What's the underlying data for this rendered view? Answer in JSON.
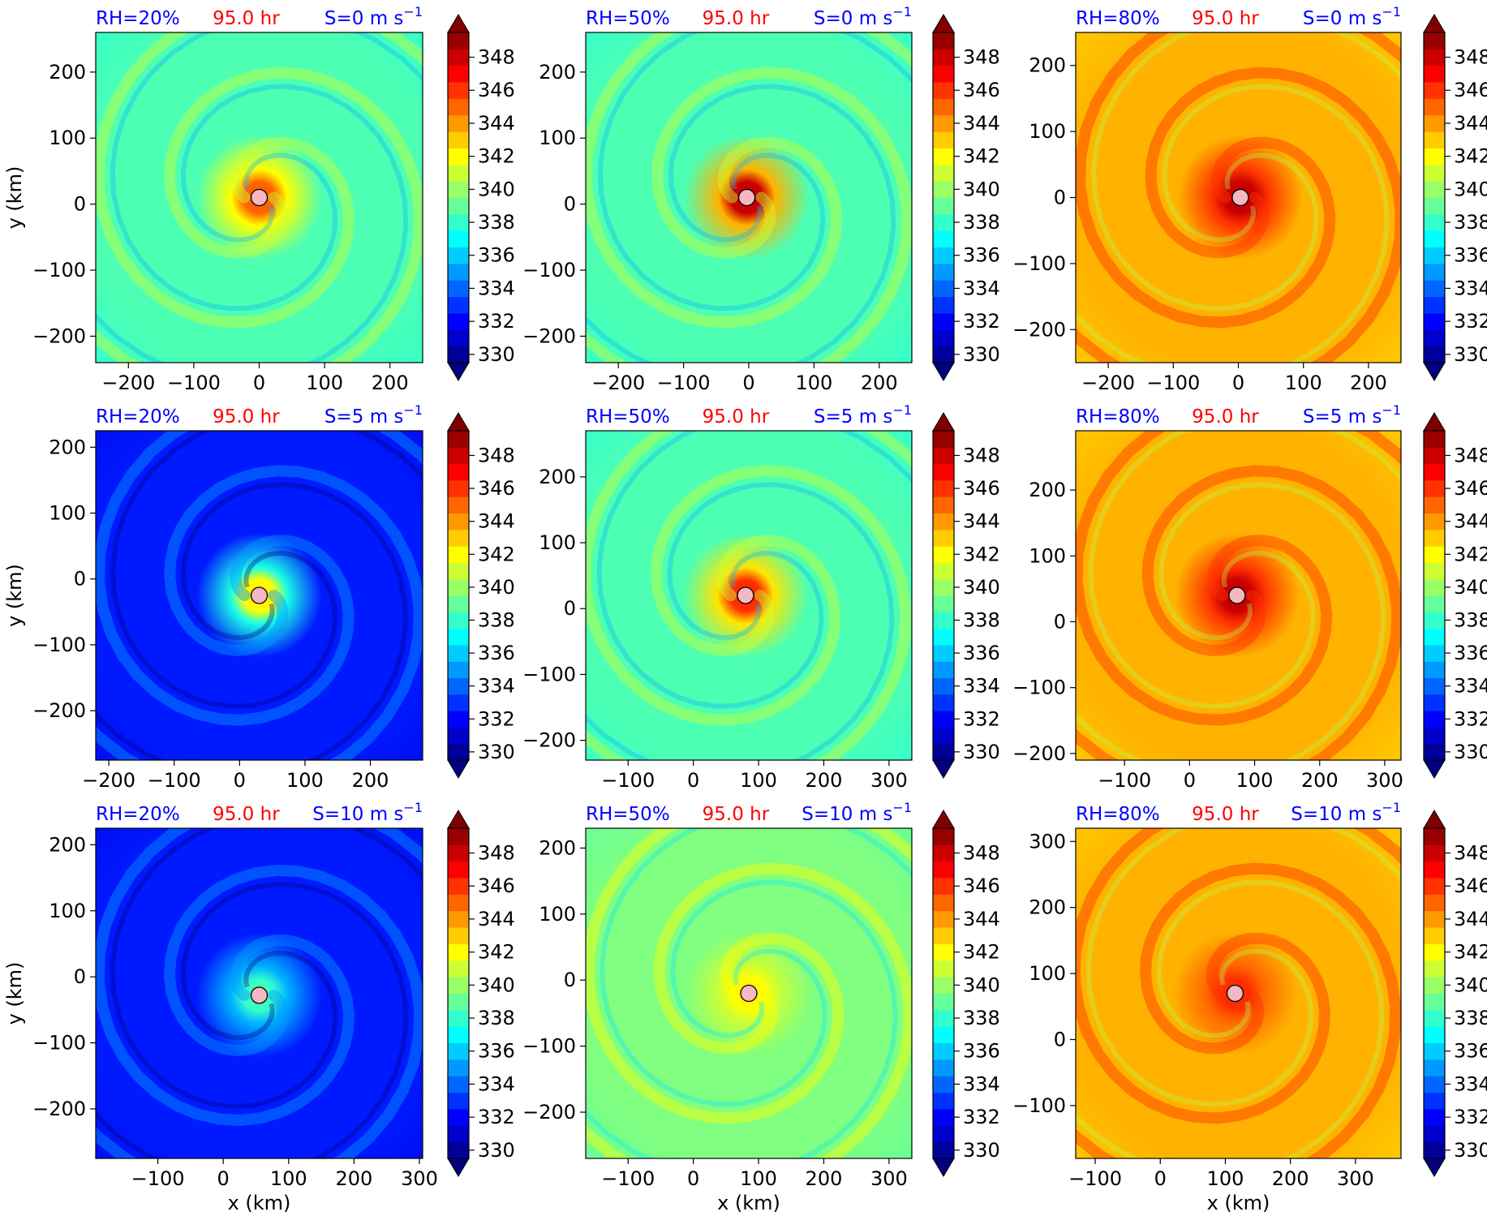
{
  "figure": {
    "colorbar": {
      "ticks": [
        "330",
        "332",
        "334",
        "336",
        "338",
        "340",
        "342",
        "344",
        "346",
        "348"
      ],
      "levels": [
        330,
        331,
        332,
        333,
        334,
        335,
        336,
        337,
        338,
        339,
        340,
        341,
        342,
        343,
        344,
        345,
        346,
        347,
        348,
        349,
        350
      ],
      "extend": "both"
    },
    "xlabel": "x (km)",
    "ylabel": "y (km)",
    "time_label": "95.0 hr"
  },
  "chart_data": [
    {
      "type": "heatmap",
      "row": 0,
      "col": 0,
      "rh_label": "RH=20%",
      "time_label": "95.0 hr",
      "shear_label": "S=0 m s",
      "shear_exp": "−1",
      "xlim": [
        -250,
        250
      ],
      "ylim": [
        -240,
        260
      ],
      "xticks": [
        -200,
        -100,
        0,
        100,
        200
      ],
      "yticks": [
        -200,
        -100,
        0,
        100,
        200
      ],
      "center": [
        0,
        10
      ],
      "inner_theta": 346,
      "outer_theta": 339,
      "ylabel": "y (km)",
      "xlabel": ""
    },
    {
      "type": "heatmap",
      "row": 0,
      "col": 1,
      "rh_label": "RH=50%",
      "time_label": "95.0 hr",
      "shear_label": "S=0 m s",
      "shear_exp": "−1",
      "xlim": [
        -250,
        250
      ],
      "ylim": [
        -240,
        260
      ],
      "xticks": [
        -200,
        -100,
        0,
        100,
        200
      ],
      "yticks": [
        -200,
        -100,
        0,
        100,
        200
      ],
      "center": [
        -3,
        10
      ],
      "inner_theta": 349,
      "outer_theta": 339,
      "ylabel": "",
      "xlabel": ""
    },
    {
      "type": "heatmap",
      "row": 0,
      "col": 2,
      "rh_label": "RH=80%",
      "time_label": "95.0 hr",
      "shear_label": "S=0 m s",
      "shear_exp": "−1",
      "xlim": [
        -250,
        250
      ],
      "ylim": [
        -250,
        250
      ],
      "xticks": [
        -200,
        -100,
        0,
        100,
        200
      ],
      "yticks": [
        -200,
        -100,
        0,
        100,
        200
      ],
      "center": [
        3,
        0
      ],
      "inner_theta": 349,
      "outer_theta": 344,
      "ylabel": "",
      "xlabel": ""
    },
    {
      "type": "heatmap",
      "row": 1,
      "col": 0,
      "rh_label": "RH=20%",
      "time_label": "95.0 hr",
      "shear_label": "S=5 m s",
      "shear_exp": "−1",
      "xlim": [
        -220,
        280
      ],
      "ylim": [
        -275,
        225
      ],
      "xticks": [
        -200,
        -100,
        0,
        100,
        200
      ],
      "yticks": [
        -200,
        -100,
        0,
        100,
        200
      ],
      "center": [
        30,
        -25
      ],
      "inner_theta": 343,
      "outer_theta": 333,
      "ylabel": "y (km)",
      "xlabel": ""
    },
    {
      "type": "heatmap",
      "row": 1,
      "col": 1,
      "rh_label": "RH=50%",
      "time_label": "95.0 hr",
      "shear_label": "S=5 m s",
      "shear_exp": "−1",
      "xlim": [
        -165,
        335
      ],
      "ylim": [
        -230,
        270
      ],
      "xticks": [
        -100,
        0,
        100,
        200,
        300
      ],
      "yticks": [
        -200,
        -100,
        0,
        100,
        200
      ],
      "center": [
        80,
        20
      ],
      "inner_theta": 347,
      "outer_theta": 339,
      "ylabel": "",
      "xlabel": ""
    },
    {
      "type": "heatmap",
      "row": 1,
      "col": 2,
      "rh_label": "RH=80%",
      "time_label": "95.0 hr",
      "shear_label": "S=5 m s",
      "shear_exp": "−1",
      "xlim": [
        -175,
        325
      ],
      "ylim": [
        -210,
        290
      ],
      "xticks": [
        -100,
        0,
        100,
        200,
        300
      ],
      "yticks": [
        -200,
        -100,
        0,
        100,
        200
      ],
      "center": [
        73,
        40
      ],
      "inner_theta": 349,
      "outer_theta": 344,
      "ylabel": "",
      "xlabel": ""
    },
    {
      "type": "heatmap",
      "row": 2,
      "col": 0,
      "rh_label": "RH=20%",
      "time_label": "95.0 hr",
      "shear_label": "S=10 m s",
      "shear_exp": "−1",
      "xlim": [
        -195,
        305
      ],
      "ylim": [
        -275,
        225
      ],
      "xticks": [
        -100,
        0,
        100,
        200,
        300
      ],
      "yticks": [
        -200,
        -100,
        0,
        100,
        200
      ],
      "center": [
        55,
        -28
      ],
      "inner_theta": 339,
      "outer_theta": 333,
      "ylabel": "y (km)",
      "xlabel": "x (km)"
    },
    {
      "type": "heatmap",
      "row": 2,
      "col": 1,
      "rh_label": "RH=50%",
      "time_label": "95.0 hr",
      "shear_label": "S=10 m s",
      "shear_exp": "−1",
      "xlim": [
        -165,
        335
      ],
      "ylim": [
        -270,
        230
      ],
      "xticks": [
        -100,
        0,
        100,
        200,
        300
      ],
      "yticks": [
        -200,
        -100,
        0,
        100,
        200
      ],
      "center": [
        85,
        -20
      ],
      "inner_theta": 343,
      "outer_theta": 340,
      "ylabel": "",
      "xlabel": "x (km)"
    },
    {
      "type": "heatmap",
      "row": 2,
      "col": 2,
      "rh_label": "RH=80%",
      "time_label": "95.0 hr",
      "shear_label": "S=10 m s",
      "shear_exp": "−1",
      "xlim": [
        -130,
        370
      ],
      "ylim": [
        -180,
        320
      ],
      "xticks": [
        -100,
        0,
        100,
        200,
        300
      ],
      "yticks": [
        -100,
        0,
        100,
        200,
        300
      ],
      "center": [
        115,
        70
      ],
      "inner_theta": 347,
      "outer_theta": 344,
      "ylabel": "",
      "xlabel": "x (km)"
    }
  ]
}
